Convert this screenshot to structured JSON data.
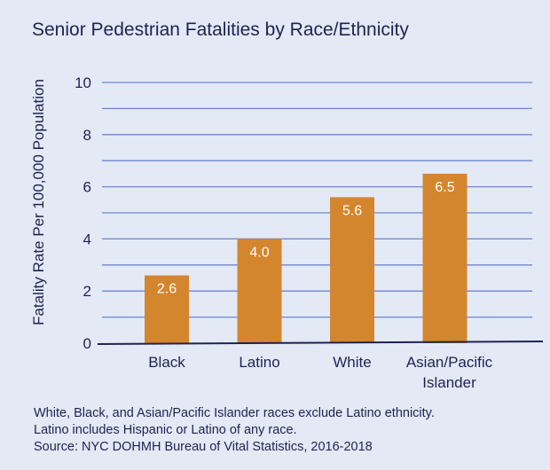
{
  "chart_data": {
    "type": "bar",
    "title": "Senior Pedestrian Fatalities by Race/Ethnicity",
    "xlabel": "",
    "ylabel": "Fatality Rate  Per 100,000 Population",
    "categories": [
      "Black",
      "Latino",
      "White",
      "Asian/Pacific Islander"
    ],
    "values": [
      2.6,
      4.0,
      5.6,
      6.5
    ],
    "data_labels": [
      "2.6",
      "4.0",
      "5.6",
      "6.5"
    ],
    "ylim": [
      0,
      10
    ],
    "yticks": [
      0,
      2,
      4,
      6,
      8,
      10
    ],
    "grid": true,
    "grid_step": 1,
    "colors": {
      "bar": "#d4862f",
      "grid": "#6e86cf",
      "text": "#1e2352",
      "background": "#e3e9f5"
    }
  },
  "notes": [
    "White, Black, and Asian/Pacific Islander races exclude Latino ethnicity.",
    "Latino includes Hispanic or Latino of any race.",
    "Source: NYC DOHMH Bureau of Vital Statistics, 2016-2018"
  ]
}
